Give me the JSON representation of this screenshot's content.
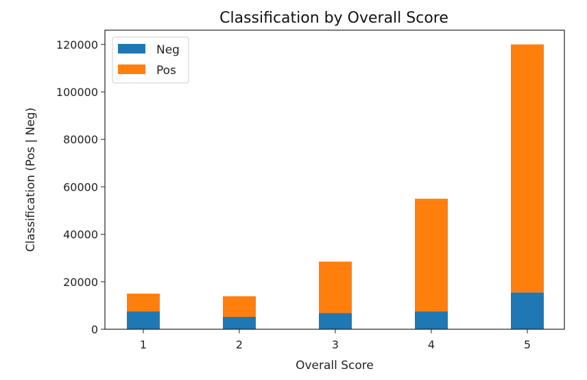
{
  "chart_data": {
    "type": "bar",
    "stacked": true,
    "title": "Classification by Overall Score",
    "xlabel": "Overall Score",
    "ylabel": "Classification (Pos | Neg)",
    "categories": [
      "1",
      "2",
      "3",
      "4",
      "5"
    ],
    "series": [
      {
        "name": "Neg",
        "color": "#1f77b4",
        "values": [
          7500,
          5200,
          6800,
          7500,
          15500
        ]
      },
      {
        "name": "Pos",
        "color": "#ff7f0e",
        "values": [
          7500,
          8700,
          21700,
          47500,
          104500
        ]
      }
    ],
    "ylim": [
      0,
      126000
    ],
    "yticks": [
      0,
      20000,
      40000,
      60000,
      80000,
      100000,
      120000
    ],
    "grid": false,
    "legend_position": "top-left"
  }
}
